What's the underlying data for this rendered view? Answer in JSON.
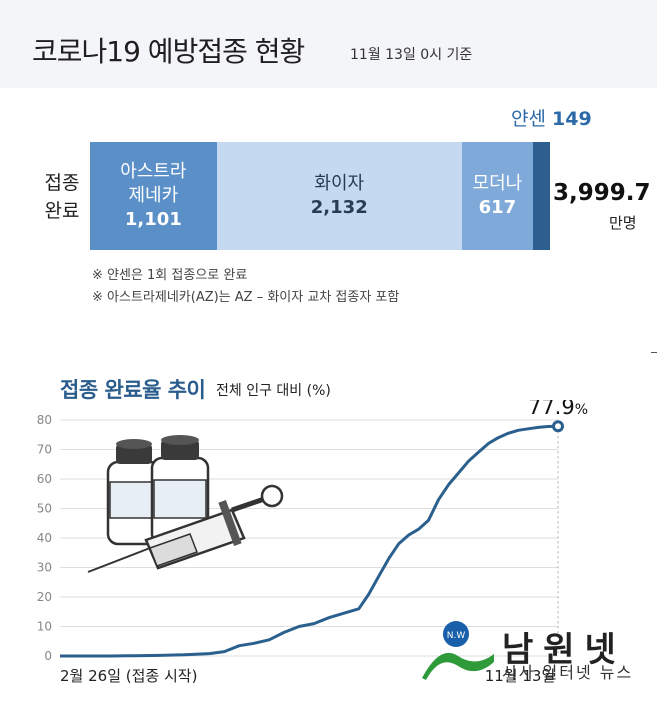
{
  "header": {
    "title": "코로나19 예방접종 현황",
    "subtitle": "11월 13일 0시 기준"
  },
  "completion": {
    "row_label_line1": "접종",
    "row_label_line2": "완료",
    "segments": [
      {
        "name_line1": "아스트라",
        "name_line2": "제네카",
        "value": "1,101",
        "num": 1101
      },
      {
        "name_line1": "화이자",
        "name_line2": "",
        "value": "2,132",
        "num": 2132
      },
      {
        "name_line1": "모더나",
        "name_line2": "",
        "value": "617",
        "num": 617
      },
      {
        "name_line1": "얀센",
        "name_line2": "",
        "value": "149",
        "num": 149
      }
    ],
    "total_value": "3,999.7",
    "total_unit": "만명",
    "notes": [
      "※ 얀센은 1회 접종으로 완료",
      "※ 아스트라제네카(AZ)는 AZ – 화이자 교차 접종자 포함"
    ]
  },
  "trend": {
    "title": "접종 완료율 추이",
    "subtitle": "전체 인구 대비 (%)",
    "start_label": "2월 26일 (접종 시작)",
    "end_label": "11월 13일",
    "final_value_label": "77.9",
    "final_value_unit": "%"
  },
  "logo": {
    "name": "남원넷",
    "tagline": "시사 일터넷 뉴스",
    "badge": "N.W"
  },
  "colors": {
    "astrazeneca": "#5b8fc7",
    "pfizer": "#c5d9f1",
    "moderna": "#7fa9d9",
    "janssen": "#2c5f8f",
    "line": "#2b5f8e",
    "title_blue": "#2a5c8c"
  },
  "chart_data": {
    "type": "line",
    "ylim": [
      0,
      80
    ],
    "yticks": [
      0,
      10,
      20,
      30,
      40,
      50,
      60,
      70,
      80
    ],
    "grid": true,
    "x_start": "2월 26일",
    "x_end": "11월 13일",
    "series": [
      {
        "x": [
          0,
          0.05,
          0.1,
          0.15,
          0.2,
          0.25,
          0.3,
          0.33,
          0.36,
          0.39,
          0.42,
          0.45,
          0.48,
          0.51,
          0.54,
          0.57,
          0.6,
          0.62,
          0.64,
          0.66,
          0.68,
          0.7,
          0.72,
          0.74,
          0.76,
          0.78,
          0.8,
          0.82,
          0.84,
          0.86,
          0.88,
          0.9,
          0.92,
          0.94,
          0.96,
          0.98,
          1.0
        ],
        "values": [
          0,
          0,
          0,
          0.1,
          0.2,
          0.4,
          0.8,
          1.5,
          3.5,
          4.3,
          5.5,
          8,
          10,
          11,
          13,
          14.5,
          16,
          21,
          27,
          33,
          38,
          41,
          43,
          46,
          53,
          58,
          62,
          66,
          69,
          72,
          74,
          75.5,
          76.5,
          77,
          77.5,
          77.8,
          77.9
        ]
      }
    ]
  }
}
